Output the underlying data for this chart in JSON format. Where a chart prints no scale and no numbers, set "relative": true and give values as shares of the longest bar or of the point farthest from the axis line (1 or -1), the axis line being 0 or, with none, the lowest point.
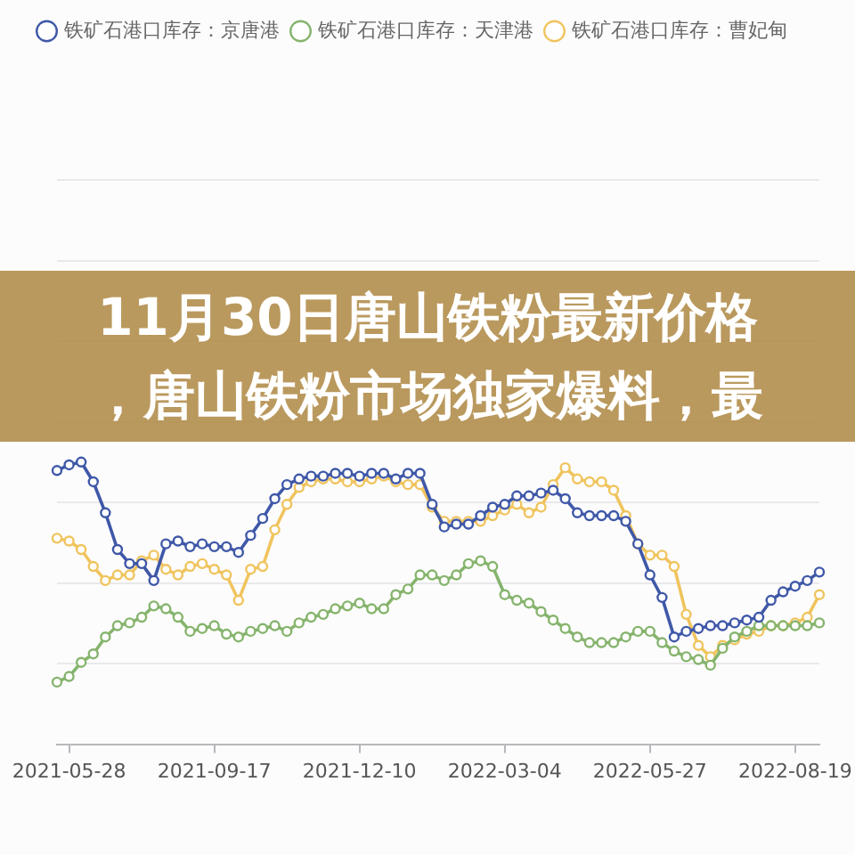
{
  "chart_data": {
    "type": "line",
    "title": "11月30日唐山铁粉最新价格，唐山铁粉市场独家爆料，最",
    "relative": true,
    "legend": "top",
    "grid": "y",
    "marker": "circle",
    "line_style": "solid",
    "categories": [
      null,
      "2021-05-28",
      null,
      null,
      null,
      null,
      null,
      null,
      null,
      null,
      null,
      null,
      null,
      "2021-09-17",
      null,
      null,
      null,
      null,
      null,
      null,
      null,
      null,
      null,
      null,
      null,
      "2021-12-10",
      null,
      null,
      null,
      null,
      null,
      null,
      null,
      null,
      null,
      null,
      null,
      "2022-03-04",
      null,
      null,
      null,
      null,
      null,
      null,
      null,
      null,
      null,
      null,
      null,
      "2022-05-27",
      null,
      null,
      null,
      null,
      null,
      null,
      null,
      null,
      null,
      null,
      null,
      "2022-08-19",
      null,
      null
    ],
    "series": [
      {
        "name": "铁矿石港口库存：京唐港",
        "color": "#3f58a8",
        "values": [
          0.97,
          0.99,
          1.0,
          0.93,
          0.82,
          0.69,
          0.64,
          0.64,
          0.58,
          0.71,
          0.72,
          0.7,
          0.71,
          0.7,
          0.7,
          0.68,
          0.74,
          0.8,
          0.87,
          0.92,
          0.94,
          0.95,
          0.95,
          0.96,
          0.96,
          0.95,
          0.96,
          0.96,
          0.94,
          0.96,
          0.96,
          0.85,
          0.77,
          0.78,
          0.78,
          0.81,
          0.84,
          0.85,
          0.88,
          0.88,
          0.89,
          0.9,
          0.87,
          0.82,
          0.81,
          0.81,
          0.81,
          0.79,
          0.71,
          0.6,
          0.52,
          0.38,
          0.4,
          0.41,
          0.42,
          0.42,
          0.43,
          0.44,
          0.45,
          0.51,
          0.54,
          0.56,
          0.58,
          0.61
        ]
      },
      {
        "name": "铁矿石港口库存：天津港",
        "color": "#86b46d",
        "values": [
          0.22,
          0.24,
          0.29,
          0.32,
          0.38,
          0.42,
          0.43,
          0.45,
          0.49,
          0.48,
          0.45,
          0.4,
          0.41,
          0.42,
          0.39,
          0.38,
          0.4,
          0.41,
          0.42,
          0.4,
          0.43,
          0.45,
          0.46,
          0.48,
          0.49,
          0.5,
          0.48,
          0.48,
          0.53,
          0.55,
          0.6,
          0.6,
          0.58,
          0.6,
          0.64,
          0.65,
          0.63,
          0.53,
          0.51,
          0.5,
          0.47,
          0.44,
          0.41,
          0.38,
          0.36,
          0.36,
          0.36,
          0.38,
          0.4,
          0.4,
          0.36,
          0.33,
          0.31,
          0.3,
          0.28,
          0.34,
          0.38,
          0.4,
          0.42,
          0.42,
          0.42,
          0.42,
          0.42,
          0.43
        ]
      },
      {
        "name": "铁矿石港口库存：曹妃甸",
        "color": "#f0c45e",
        "values": [
          0.73,
          0.72,
          0.69,
          0.63,
          0.58,
          0.6,
          0.6,
          0.65,
          0.67,
          0.62,
          0.6,
          0.63,
          0.64,
          0.62,
          0.6,
          0.51,
          0.62,
          0.63,
          0.76,
          0.85,
          0.91,
          0.93,
          0.94,
          0.94,
          0.93,
          0.93,
          0.94,
          0.95,
          0.93,
          0.92,
          0.92,
          0.84,
          0.79,
          0.79,
          0.79,
          0.79,
          0.81,
          0.83,
          0.85,
          0.82,
          0.84,
          0.92,
          0.98,
          0.94,
          0.93,
          0.93,
          0.9,
          0.81,
          0.71,
          0.67,
          0.67,
          0.63,
          0.46,
          0.35,
          0.31,
          0.35,
          0.37,
          0.39,
          0.4,
          0.42,
          0.42,
          0.43,
          0.45,
          0.53
        ]
      }
    ]
  }
}
